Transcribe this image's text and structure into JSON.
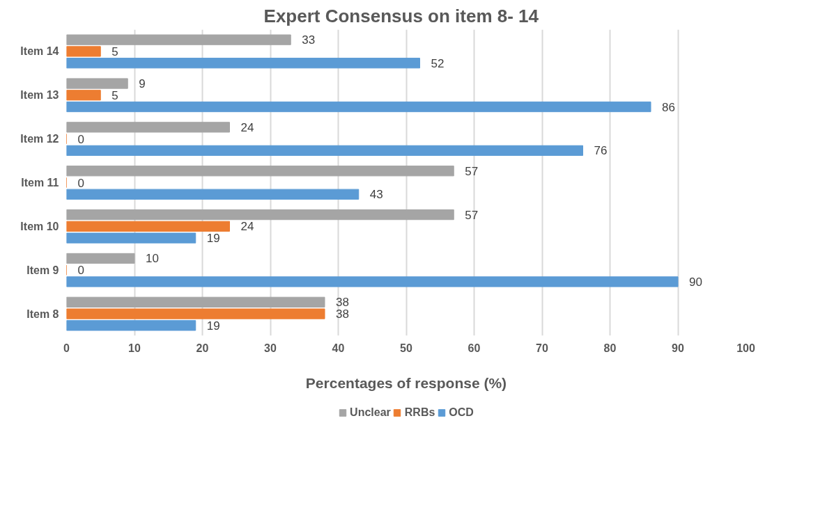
{
  "chart_data": {
    "type": "bar",
    "orientation": "horizontal",
    "title": "Expert Consensus  on item 8-  14",
    "xlabel": "Percentages of response (%)",
    "categories": [
      "Item 14",
      "Item 13",
      "Item 12",
      "Item 11",
      "Item 10",
      "Item 9",
      "Item 8"
    ],
    "series": [
      {
        "name": "OCD",
        "color": "#5b9bd5",
        "values": [
          52,
          86,
          76,
          43,
          19,
          90,
          19
        ]
      },
      {
        "name": "RRBs",
        "color": "#ed7d31",
        "values": [
          5,
          5,
          0,
          0,
          24,
          0,
          38
        ]
      },
      {
        "name": "Unclear",
        "color": "#a5a5a5",
        "values": [
          33,
          9,
          24,
          57,
          57,
          10,
          38
        ]
      }
    ],
    "xlim": [
      0,
      100
    ],
    "xticks": [
      0,
      10,
      20,
      30,
      40,
      50,
      60,
      70,
      80,
      90,
      100
    ],
    "grid": "x",
    "legend": "bottom",
    "data_labels": true
  }
}
